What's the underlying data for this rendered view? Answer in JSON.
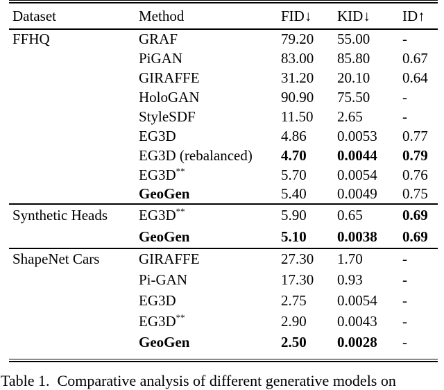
{
  "page": {
    "background_color": "#ffffff",
    "text_color": "#000000",
    "rule_color": "#000000"
  },
  "table": {
    "columns": [
      {
        "key": "dataset",
        "label": "Dataset",
        "arrow": ""
      },
      {
        "key": "method",
        "label": "Method",
        "arrow": ""
      },
      {
        "key": "fid",
        "label": "FID",
        "arrow": "↓"
      },
      {
        "key": "kid",
        "label": "KID",
        "arrow": "↓"
      },
      {
        "key": "id",
        "label": "ID",
        "arrow": "↑"
      }
    ],
    "sections": [
      {
        "dataset": "FFHQ",
        "rows": [
          {
            "method": "GRAF",
            "fid": "79.20",
            "kid": "55.00",
            "id": "-"
          },
          {
            "method": "PiGAN",
            "fid": "83.00",
            "kid": "85.80",
            "id": "0.67"
          },
          {
            "method": "GIRAFFE",
            "fid": "31.20",
            "kid": "20.10",
            "id": "0.64"
          },
          {
            "method": "HoloGAN",
            "fid": "90.90",
            "kid": "75.50",
            "id": "-"
          },
          {
            "method": "StyleSDF",
            "fid": "11.50",
            "kid": "2.65",
            "id": "-"
          },
          {
            "method": "EG3D",
            "fid": "4.86",
            "kid": "0.0053",
            "id": "0.77"
          },
          {
            "method": "EG3D (rebalanced)",
            "fid": "4.70",
            "kid": "0.0044",
            "id": "0.79",
            "bold": [
              "fid",
              "kid",
              "id"
            ]
          },
          {
            "method": "EG3D",
            "sup": "**",
            "fid": "5.70",
            "kid": "0.0054",
            "id": "0.76"
          },
          {
            "method": "GeoGen",
            "fid": "5.40",
            "kid": "0.0049",
            "id": "0.75",
            "bold": [
              "method"
            ]
          }
        ]
      },
      {
        "dataset": "Synthetic Heads",
        "rows": [
          {
            "method": "EG3D",
            "sup": "**",
            "fid": "5.90",
            "kid": "0.65",
            "id": "0.69",
            "bold": [
              "id"
            ]
          },
          {
            "method": "GeoGen",
            "fid": "5.10",
            "kid": "0.0038",
            "id": "0.69",
            "bold": [
              "method",
              "fid",
              "kid",
              "id"
            ]
          }
        ]
      },
      {
        "dataset": "ShapeNet Cars",
        "rows": [
          {
            "method": "GIRAFFE",
            "fid": "27.30",
            "kid": "1.70",
            "id": "-"
          },
          {
            "method": "Pi-GAN",
            "fid": "17.30",
            "kid": "0.93",
            "id": "-"
          },
          {
            "method": "EG3D",
            "fid": "2.75",
            "kid": "0.0054",
            "id": "-"
          },
          {
            "method": "EG3D",
            "sup": "**",
            "fid": "2.90",
            "kid": "0.0043",
            "id": "-"
          },
          {
            "method": "GeoGen",
            "fid": "2.50",
            "kid": "0.0028",
            "id": "-",
            "bold": [
              "method",
              "fid",
              "kid"
            ]
          }
        ]
      }
    ]
  },
  "caption": "Table 1.  Comparative analysis of different generative models on"
}
